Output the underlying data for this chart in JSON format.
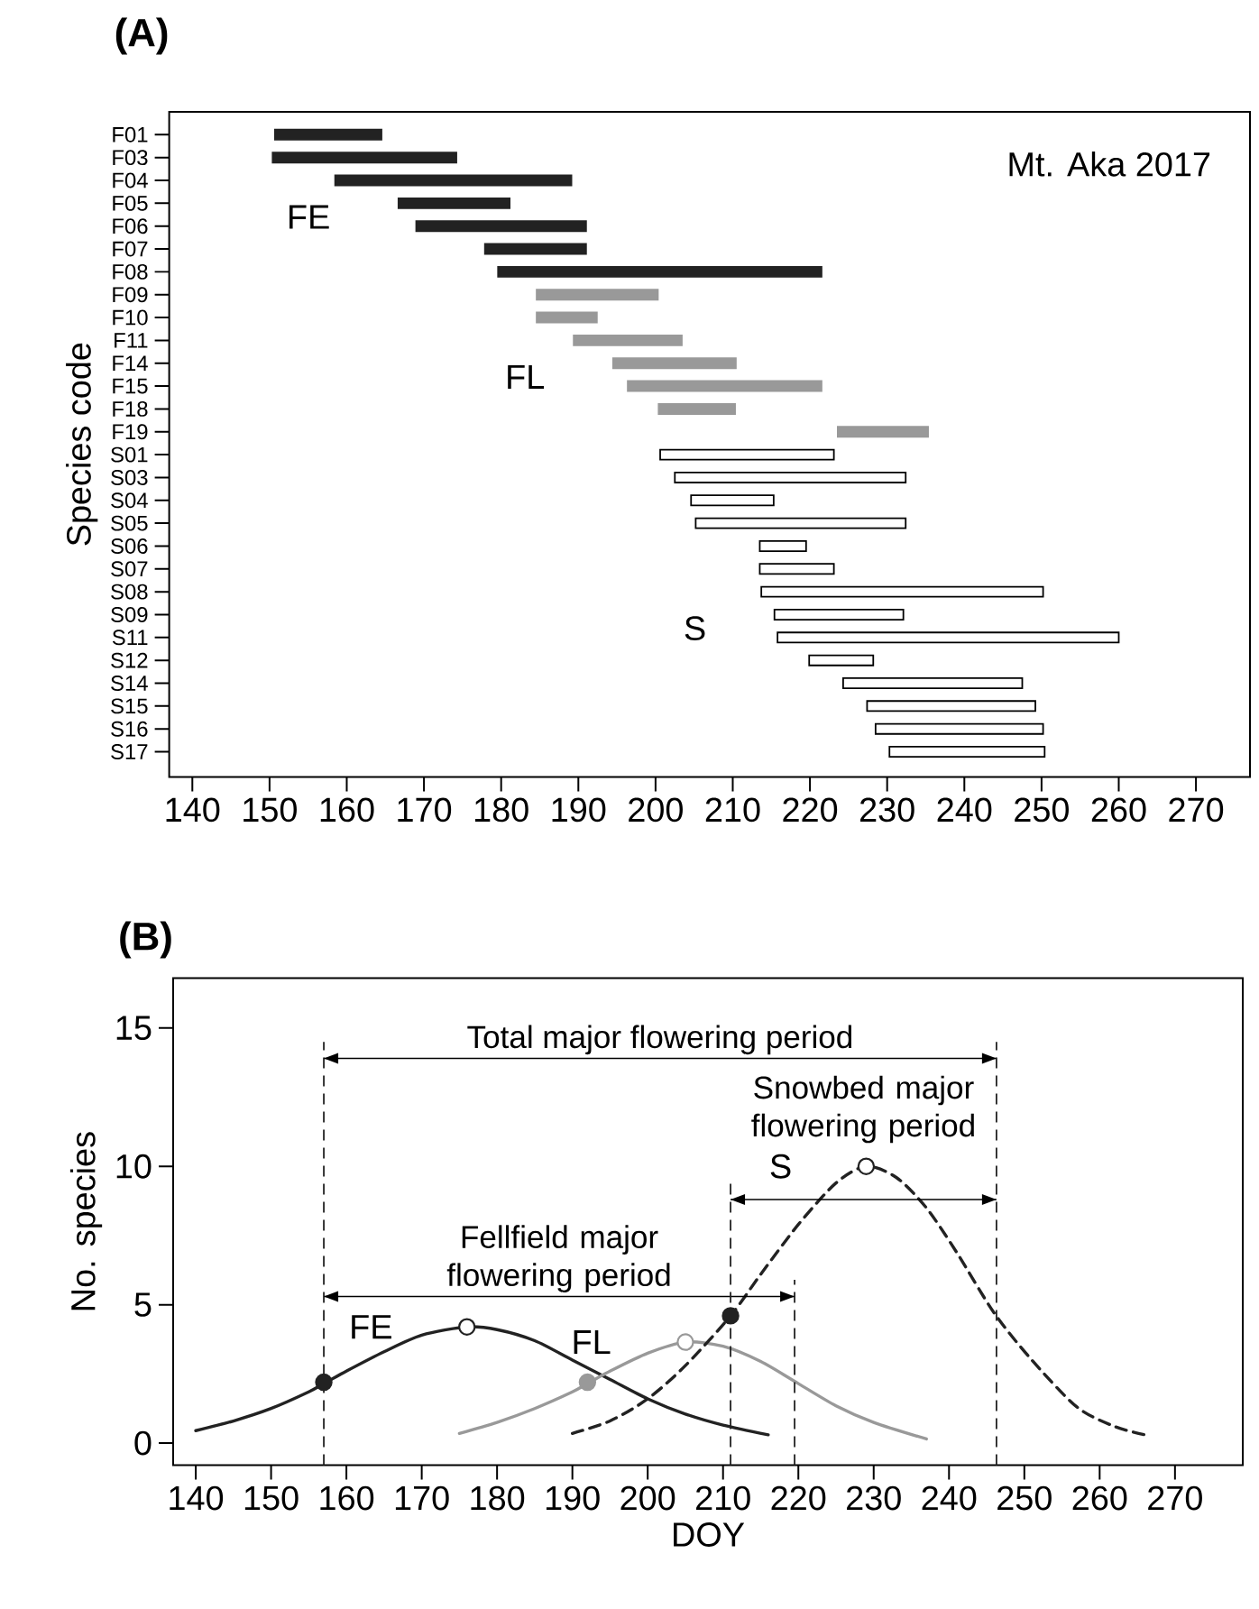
{
  "chart_data": [
    {
      "type": "bar",
      "title": "(A)",
      "ylabel": "Species code",
      "orientation": "horizontal",
      "categories": [
        "F01",
        "F03",
        "F04",
        "F05",
        "F06",
        "F07",
        "F08",
        "F09",
        "F10",
        "F11",
        "F14",
        "F15",
        "F18",
        "F19",
        "S01",
        "S03",
        "S04",
        "S05",
        "S06",
        "S07",
        "S08",
        "S09",
        "S11",
        "S12",
        "S14",
        "S15",
        "S16",
        "S17"
      ],
      "series": [
        {
          "name": "FE",
          "color": "#222222",
          "base": [
            150.7,
            150.4,
            158.5,
            166.7,
            169.0,
            177.9,
            179.6,
            null,
            null,
            null,
            null,
            null,
            null,
            null,
            null,
            null,
            null,
            null,
            null,
            null,
            null,
            null,
            null,
            null,
            null,
            null,
            null,
            null
          ],
          "values": [
            13.8,
            23.8,
            30.6,
            14.4,
            22.0,
            13.1,
            41.9,
            null,
            null,
            null,
            null,
            null,
            null,
            null,
            null,
            null,
            null,
            null,
            null,
            null,
            null,
            null,
            null,
            null,
            null,
            null,
            null,
            null
          ]
        },
        {
          "name": "FL",
          "color": "#999999",
          "base": [
            null,
            null,
            null,
            null,
            null,
            null,
            null,
            184.6,
            184.6,
            189.4,
            194.5,
            196.4,
            200.4,
            223.6,
            null,
            null,
            null,
            null,
            null,
            null,
            null,
            null,
            null,
            null,
            null,
            null,
            null,
            null
          ],
          "values": [
            null,
            null,
            null,
            null,
            null,
            null,
            null,
            15.7,
            7.8,
            14.0,
            15.9,
            25.1,
            9.9,
            11.7,
            null,
            null,
            null,
            null,
            null,
            null,
            null,
            null,
            null,
            null,
            null,
            null,
            null,
            null
          ]
        },
        {
          "name": "S",
          "color": "#ffffff",
          "base": [
            null,
            null,
            null,
            null,
            null,
            null,
            null,
            null,
            null,
            null,
            null,
            null,
            null,
            null,
            200.6,
            202.5,
            204.6,
            205.2,
            213.5,
            213.5,
            213.7,
            215.4,
            215.8,
            219.9,
            224.3,
            227.4,
            228.5,
            230.3
          ],
          "values": [
            null,
            null,
            null,
            null,
            null,
            null,
            null,
            null,
            null,
            null,
            null,
            null,
            null,
            null,
            22.5,
            29.9,
            10.7,
            27.2,
            6.0,
            9.6,
            36.5,
            16.7,
            44.2,
            8.3,
            23.2,
            21.8,
            21.7,
            20.1
          ]
        }
      ],
      "xlim": [
        137,
        277
      ],
      "xticks": [
        140,
        150,
        160,
        170,
        180,
        190,
        200,
        210,
        220,
        230,
        240,
        250,
        260,
        270
      ],
      "annotations": [
        "Mt. Aka 2017"
      ]
    },
    {
      "type": "line",
      "title": "(B)",
      "xlabel": "DOY",
      "ylabel": "No. species",
      "series": [
        {
          "name": "FE",
          "type": "line",
          "color": "#222222",
          "line_style": "solid",
          "x": [
            140,
            145,
            150,
            155,
            157,
            160,
            165,
            170,
            176,
            180,
            185,
            190,
            195,
            200,
            205,
            210,
            216
          ],
          "values": [
            0.45,
            0.8,
            1.25,
            1.85,
            2.15,
            2.6,
            3.3,
            3.9,
            4.2,
            4.1,
            3.7,
            3.0,
            2.3,
            1.6,
            1.05,
            0.65,
            0.3
          ]
        },
        {
          "name": "FL",
          "type": "line",
          "color": "#999999",
          "line_style": "solid",
          "x": [
            175,
            180,
            185,
            190,
            192,
            195,
            200,
            205,
            210,
            215,
            220,
            225,
            230,
            237
          ],
          "values": [
            0.35,
            0.75,
            1.25,
            1.85,
            2.15,
            2.6,
            3.25,
            3.65,
            3.5,
            2.95,
            2.15,
            1.35,
            0.75,
            0.15
          ]
        },
        {
          "name": "S",
          "type": "line",
          "color": "#222222",
          "line_style": "dashed",
          "x": [
            190,
            195,
            200,
            205,
            211,
            215,
            220,
            225,
            229,
            233,
            237,
            241,
            246,
            251,
            257,
            262,
            266
          ],
          "values": [
            0.35,
            0.8,
            1.6,
            2.8,
            4.6,
            6.1,
            7.9,
            9.4,
            10.0,
            9.6,
            8.5,
            6.9,
            4.7,
            3.0,
            1.3,
            0.6,
            0.3
          ]
        },
        {
          "type": "line",
          "color": "#000000",
          "line_style": "solid",
          "x": [
            157,
            246.3
          ],
          "values": [
            13.9,
            13.9
          ]
        },
        {
          "type": "line",
          "color": "#000000",
          "line_style": "solid",
          "x": [
            211,
            246.3
          ],
          "values": [
            8.8,
            8.8
          ]
        },
        {
          "type": "line",
          "color": "#000000",
          "line_style": "solid",
          "x": [
            157,
            219.5
          ],
          "values": [
            5.3,
            5.3
          ]
        },
        {
          "type": "scatter",
          "marker": "circle",
          "x": [
            157,
            192,
            211
          ],
          "values": [
            2.2,
            2.2,
            4.6
          ],
          "colors": [
            "#222222",
            "#999999",
            "#222222"
          ]
        },
        {
          "type": "scatter",
          "marker": "circle",
          "color": "#ffffff",
          "x": [
            176,
            205,
            229
          ],
          "values": [
            4.2,
            3.65,
            10.0
          ],
          "colors": [
            "#222222",
            "#999999",
            "#222222"
          ]
        }
      ],
      "xlim": [
        137,
        279
      ],
      "xticks": [
        140,
        150,
        160,
        170,
        180,
        190,
        200,
        210,
        220,
        230,
        240,
        250,
        260,
        270
      ],
      "ylim": [
        -0.8,
        16.8
      ],
      "yticks": [
        0,
        5,
        10,
        15
      ],
      "ref_lines": [
        {
          "axis": "x",
          "value": 157,
          "color": "#222222",
          "line_style": "dashed"
        },
        {
          "axis": "x",
          "value": 211,
          "color": "#222222",
          "line_style": "dashed"
        },
        {
          "axis": "x",
          "value": 219.5,
          "color": "#222222",
          "line_style": "dashed"
        },
        {
          "axis": "x",
          "value": 246.3,
          "color": "#222222",
          "line_style": "dashed"
        }
      ],
      "annotations": [
        {
          "text": "Total major flowering period",
          "x": 201.65,
          "y": 13.9
        },
        {
          "text": "Snowbed major flowering period",
          "x": 228.65,
          "y": 8.8
        },
        {
          "text": "Fellfield major flowering period",
          "x": 188.25,
          "y": 5.3
        }
      ]
    }
  ]
}
